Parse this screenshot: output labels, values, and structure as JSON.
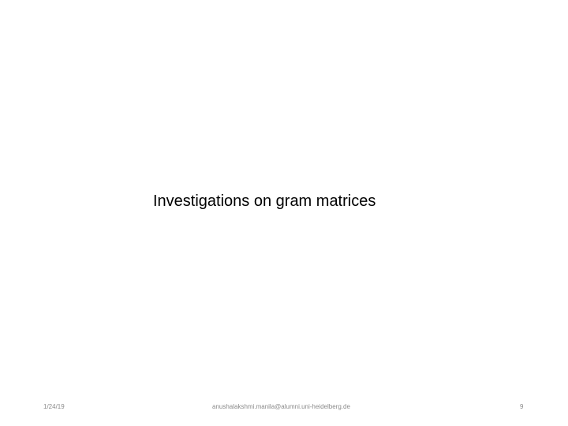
{
  "slide": {
    "title": "Investigations on gram matrices",
    "footer": {
      "date": "1/24/19",
      "email": "anushalakshmi.manila@alumni.uni-heidelberg.de",
      "page_number": "9"
    }
  }
}
